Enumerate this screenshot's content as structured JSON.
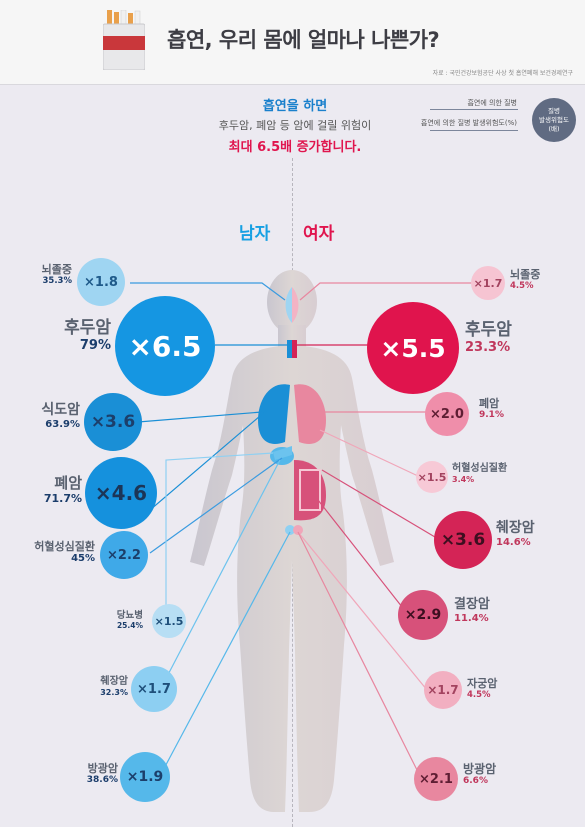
{
  "header": {
    "title": "흡연, 우리 몸에 얼마나 나쁜가?",
    "source": "자료 : 국민건강보험공단 사상 첫 흡연폐해 보건경제연구"
  },
  "intro": {
    "line1": "흡연을 하면",
    "line2": "후두암, 폐암 등 암에 걸릴 위험이",
    "line3": "최대 6.5배 증가합니다."
  },
  "legend": {
    "risk_label": "흡연에 의한 질병",
    "attrib_label": "흡연에 의한 질병 발생위험도(%)",
    "circle_lines": [
      "질병",
      "발생위험도",
      "(배)"
    ]
  },
  "gender": {
    "male": "남자",
    "female": "여자"
  },
  "colors": {
    "male_accent": "#1591dd",
    "female_accent": "#e0154e",
    "text_gray": "#5a6270"
  },
  "male": [
    {
      "name": "뇌졸중",
      "ratio": "×1.8",
      "pct": "35.3%"
    },
    {
      "name": "후두암",
      "ratio": "×6.5",
      "pct": "79%"
    },
    {
      "name": "식도암",
      "ratio": "×3.6",
      "pct": "63.9%"
    },
    {
      "name": "폐암",
      "ratio": "×4.6",
      "pct": "71.7%"
    },
    {
      "name": "허혈성심질환",
      "ratio": "×2.2",
      "pct": "45%"
    },
    {
      "name": "당뇨병",
      "ratio": "×1.5",
      "pct": "25.4%"
    },
    {
      "name": "췌장암",
      "ratio": "×1.7",
      "pct": "32.3%"
    },
    {
      "name": "방광암",
      "ratio": "×1.9",
      "pct": "38.6%"
    }
  ],
  "female": [
    {
      "name": "뇌졸중",
      "ratio": "×1.7",
      "pct": "4.5%"
    },
    {
      "name": "후두암",
      "ratio": "×5.5",
      "pct": "23.3%"
    },
    {
      "name": "폐암",
      "ratio": "×2.0",
      "pct": "9.1%"
    },
    {
      "name": "허혈성심질환",
      "ratio": "×1.5",
      "pct": "3.4%"
    },
    {
      "name": "췌장암",
      "ratio": "×3.6",
      "pct": "14.6%"
    },
    {
      "name": "결장암",
      "ratio": "×2.9",
      "pct": "11.4%"
    },
    {
      "name": "자궁암",
      "ratio": "×1.7",
      "pct": "4.5%"
    },
    {
      "name": "방광암",
      "ratio": "×2.1",
      "pct": "6.6%"
    }
  ]
}
